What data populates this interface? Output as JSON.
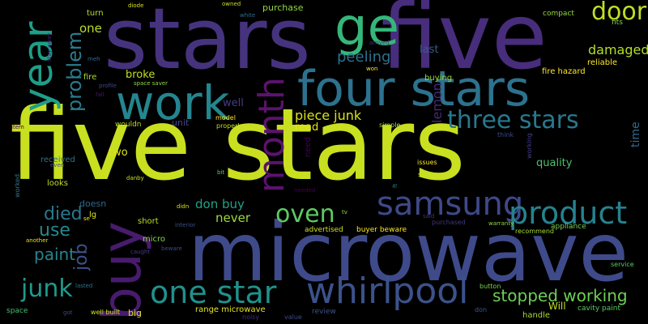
{
  "words": [
    {
      "text": "five stars",
      "color": "#c8e020",
      "rotated": false
    },
    {
      "text": "microwave",
      "color": "#3f4a8a",
      "rotated": false
    },
    {
      "text": "stars",
      "color": "#46337e",
      "rotated": false
    },
    {
      "text": "five",
      "color": "#472d7b",
      "rotated": false
    },
    {
      "text": "four stars",
      "color": "#2c728e",
      "rotated": false
    },
    {
      "text": "work",
      "color": "#24868e",
      "rotated": false
    },
    {
      "text": "buy",
      "color": "#481b6d",
      "rotated": true
    },
    {
      "text": "ge",
      "color": "#35b779",
      "rotated": false
    },
    {
      "text": "whirlpool",
      "color": "#3b528b",
      "rotated": false
    },
    {
      "text": "one star",
      "color": "#21918c",
      "rotated": false
    },
    {
      "text": "year",
      "color": "#1f9e89",
      "rotated": true
    },
    {
      "text": "month",
      "color": "#5c126e",
      "rotated": true
    },
    {
      "text": "three stars",
      "color": "#29788e",
      "rotated": false
    },
    {
      "text": "samsung",
      "color": "#3e4989",
      "rotated": false
    },
    {
      "text": "product",
      "color": "#26828e",
      "rotated": false
    },
    {
      "text": "door",
      "color": "#bddf26",
      "rotated": false
    },
    {
      "text": "oven",
      "color": "#5ec962",
      "rotated": false
    },
    {
      "text": "junk",
      "color": "#1f9a8a",
      "rotated": false
    },
    {
      "text": "stopped working",
      "color": "#6ece58",
      "rotated": false
    },
    {
      "text": "problem",
      "color": "#287c8e",
      "rotated": true
    },
    {
      "text": "died",
      "color": "#2a788e",
      "rotated": false
    },
    {
      "text": "use",
      "color": "#23898e",
      "rotated": false
    },
    {
      "text": "paint",
      "color": "#25858e",
      "rotated": false
    },
    {
      "text": "job",
      "color": "#3b528b",
      "rotated": true
    },
    {
      "text": "peeling",
      "color": "#2d718e",
      "rotated": false
    },
    {
      "text": "piece junk",
      "color": "#d8e219",
      "rotated": false
    },
    {
      "text": "damaged",
      "color": "#b5de2b",
      "rotated": false
    },
    {
      "text": "don buy",
      "color": "#20a386",
      "rotated": false
    },
    {
      "text": "lemon",
      "color": "#482878",
      "rotated": true
    },
    {
      "text": "never",
      "color": "#9fda3a",
      "rotated": false
    },
    {
      "text": "one",
      "color": "#b8de29",
      "rotated": false
    },
    {
      "text": "broke",
      "color": "#c2df23",
      "rotated": false
    },
    {
      "text": "well",
      "color": "#433e85",
      "rotated": false
    },
    {
      "text": "last",
      "color": "#365c8d",
      "rotated": false
    },
    {
      "text": "quality",
      "color": "#4ac16d",
      "rotated": false
    },
    {
      "text": "time",
      "color": "#306a8e",
      "rotated": true
    },
    {
      "text": "two",
      "color": "#dde318",
      "rotated": false
    },
    {
      "text": "read",
      "color": "#e5e419",
      "rotated": false
    },
    {
      "text": "unit",
      "color": "#414487",
      "rotated": false
    },
    {
      "text": "doesn",
      "color": "#31688e",
      "rotated": false
    },
    {
      "text": "Will",
      "color": "#c0df25",
      "rotated": false
    },
    {
      "text": "need",
      "color": "#440154",
      "rotated": true
    },
    {
      "text": "fire hazard",
      "color": "#fde725",
      "rotated": false
    },
    {
      "text": "buying",
      "color": "#9bd93c",
      "rotated": false
    },
    {
      "text": "reliable",
      "color": "#fde725",
      "rotated": false
    },
    {
      "text": "fire",
      "color": "#a8db34",
      "rotated": false
    },
    {
      "text": "purchase",
      "color": "#93d741",
      "rotated": false
    },
    {
      "text": "turn",
      "color": "#b5de2b",
      "rotated": false
    },
    {
      "text": "compact",
      "color": "#98d83e",
      "rotated": false
    },
    {
      "text": "fits",
      "color": "#86d549",
      "rotated": false
    },
    {
      "text": "received",
      "color": "#2c728e",
      "rotated": false
    },
    {
      "text": "looks",
      "color": "#c2df23",
      "rotated": false
    },
    {
      "text": "lg",
      "color": "#dde318",
      "rotated": false
    },
    {
      "text": "se",
      "color": "#fde725",
      "rotated": false
    },
    {
      "text": "micro",
      "color": "#8bd646",
      "rotated": false
    },
    {
      "text": "short",
      "color": "#b5de2b",
      "rotated": false
    },
    {
      "text": "advertised",
      "color": "#d0e11c",
      "rotated": false
    },
    {
      "text": "buyer beware",
      "color": "#fde725",
      "rotated": false
    },
    {
      "text": "appliance",
      "color": "#7ad151",
      "rotated": false
    },
    {
      "text": "recommend",
      "color": "#a5db36",
      "rotated": false
    },
    {
      "text": "service",
      "color": "#5ec962",
      "rotated": false
    },
    {
      "text": "range microwave",
      "color": "#e5e419",
      "rotated": false
    },
    {
      "text": "handle",
      "color": "#a8db34",
      "rotated": false
    },
    {
      "text": "cavity paint",
      "color": "#5ec962",
      "rotated": false
    },
    {
      "text": "big",
      "color": "#dde318",
      "rotated": false
    },
    {
      "text": "well built",
      "color": "#d0e11c",
      "rotated": false
    },
    {
      "text": "review",
      "color": "#3b528b",
      "rotated": false
    },
    {
      "text": "value",
      "color": "#3e4a89",
      "rotated": false
    },
    {
      "text": "noisy",
      "color": "#472c7a",
      "rotated": false
    },
    {
      "text": "don",
      "color": "#365c8d",
      "rotated": false
    },
    {
      "text": "button",
      "color": "#7fd34e",
      "rotated": false
    },
    {
      "text": "warranty",
      "color": "#8fd744",
      "rotated": false
    },
    {
      "text": "purchased",
      "color": "#453581",
      "rotated": false
    },
    {
      "text": "said",
      "color": "#46307e",
      "rotated": false
    },
    {
      "text": "tv",
      "color": "#9bd93c",
      "rotated": false
    },
    {
      "text": "issues",
      "color": "#fde725",
      "rotated": false
    },
    {
      "text": "still",
      "color": "#bddf26",
      "rotated": false
    },
    {
      "text": "needed",
      "color": "#440154",
      "rotated": false
    },
    {
      "text": "simple",
      "color": "#aadc32",
      "rotated": false
    },
    {
      "text": "think",
      "color": "#3e4a89",
      "rotated": false
    },
    {
      "text": "working",
      "color": "#433e85",
      "rotated": true
    },
    {
      "text": "model",
      "color": "#fde725",
      "rotated": false
    },
    {
      "text": "properly",
      "color": "#c2df23",
      "rotated": false
    },
    {
      "text": "wouldn",
      "color": "#b8de29",
      "rotated": false
    },
    {
      "text": "fall",
      "color": "#48186a",
      "rotated": false
    },
    {
      "text": "space saver",
      "color": "#8fd744",
      "rotated": false
    },
    {
      "text": "profile",
      "color": "#3e4989",
      "rotated": false
    },
    {
      "text": "meh",
      "color": "#31688e",
      "rotated": false
    },
    {
      "text": "stay away",
      "color": "#482475",
      "rotated": true
    },
    {
      "text": "diode",
      "color": "#d8e219",
      "rotated": false
    },
    {
      "text": "owned",
      "color": "#c8e020",
      "rotated": false
    },
    {
      "text": "white",
      "color": "#2d708e",
      "rotated": false
    },
    {
      "text": "arrived",
      "color": "#453781",
      "rotated": false
    },
    {
      "text": "won",
      "color": "#fde725",
      "rotated": false
    },
    {
      "text": "item",
      "color": "#440154",
      "rotated": false
    },
    {
      "text": "even",
      "color": "#3b528b",
      "rotated": false
    },
    {
      "text": "worked",
      "color": "#2a788e",
      "rotated": true
    },
    {
      "text": "danby",
      "color": "#c8e020",
      "rotated": false
    },
    {
      "text": "bit",
      "color": "#5ec962",
      "rotated": false
    },
    {
      "text": "didn",
      "color": "#d8e219",
      "rotated": false
    },
    {
      "text": "interior",
      "color": "#3b528b",
      "rotated": false
    },
    {
      "text": "caught",
      "color": "#443a83",
      "rotated": false
    },
    {
      "text": "beware",
      "color": "#3e4a89",
      "rotated": false
    },
    {
      "text": "another",
      "color": "#e5e419",
      "rotated": false
    },
    {
      "text": "lasted",
      "color": "#2c728e",
      "rotated": false
    },
    {
      "text": "space",
      "color": "#48c16e",
      "rotated": false
    },
    {
      "text": "got",
      "color": "#3e4989",
      "rotated": false
    },
    {
      "text": "ft",
      "color": "#26828e",
      "rotated": true
    }
  ]
}
